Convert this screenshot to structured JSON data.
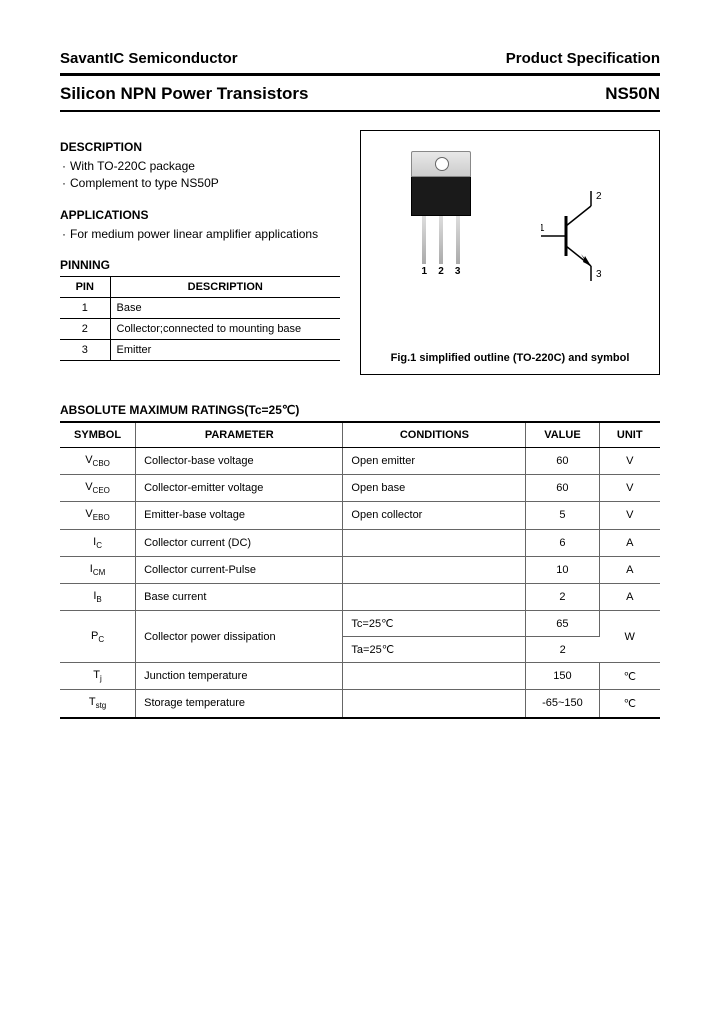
{
  "header": {
    "company": "SavantIC Semiconductor",
    "spec": "Product Specification",
    "title": "Silicon NPN Power Transistors",
    "part": "NS50N"
  },
  "description": {
    "head": "DESCRIPTION",
    "items": [
      "With TO-220C package",
      "Complement to type NS50P"
    ]
  },
  "applications": {
    "head": "APPLICATIONS",
    "items": [
      "For medium power linear amplifier applications"
    ]
  },
  "pinning": {
    "head": "PINNING",
    "col_pin": "PIN",
    "col_desc": "DESCRIPTION",
    "rows": [
      {
        "pin": "1",
        "desc": "Base"
      },
      {
        "pin": "2",
        "desc": "Collector;connected to mounting base"
      },
      {
        "pin": "3",
        "desc": "Emitter"
      }
    ]
  },
  "figure": {
    "caption": "Fig.1 simplified outline (TO-220C) and symbol",
    "lead_labels": [
      "1",
      "2",
      "3"
    ],
    "sym_labels": {
      "b": "1",
      "c": "2",
      "e": "3"
    }
  },
  "ratings": {
    "head": "ABSOLUTE MAXIMUM RATINGS(Tc=25℃)",
    "columns": [
      "SYMBOL",
      "PARAMETER",
      "CONDITIONS",
      "VALUE",
      "UNIT"
    ],
    "rows": [
      {
        "sym": "V",
        "sub": "CBO",
        "param": "Collector-base voltage",
        "cond": "Open emitter",
        "val": "60",
        "unit": "V",
        "rowspan": 1
      },
      {
        "sym": "V",
        "sub": "CEO",
        "param": "Collector-emitter voltage",
        "cond": "Open base",
        "val": "60",
        "unit": "V",
        "rowspan": 1
      },
      {
        "sym": "V",
        "sub": "EBO",
        "param": "Emitter-base voltage",
        "cond": "Open collector",
        "val": "5",
        "unit": "V",
        "rowspan": 1
      },
      {
        "sym": "I",
        "sub": "C",
        "param": "Collector current (DC)",
        "cond": "",
        "val": "6",
        "unit": "A",
        "rowspan": 1
      },
      {
        "sym": "I",
        "sub": "CM",
        "param": "Collector current-Pulse",
        "cond": "",
        "val": "10",
        "unit": "A",
        "rowspan": 1
      },
      {
        "sym": "I",
        "sub": "B",
        "param": "Base current",
        "cond": "",
        "val": "2",
        "unit": "A",
        "rowspan": 1
      }
    ],
    "pc": {
      "sym": "P",
      "sub": "C",
      "param": "Collector power dissipation",
      "cond1": "Tc=25℃",
      "val1": "65",
      "cond2": "Ta=25℃",
      "val2": "2",
      "unit": "W"
    },
    "tj": {
      "sym": "T",
      "sub": "j",
      "param": "Junction temperature",
      "cond": "",
      "val": "150",
      "unit": "℃"
    },
    "tstg": {
      "sym": "T",
      "sub": "stg",
      "param": "Storage temperature",
      "cond": "",
      "val": "-65~150",
      "unit": "℃"
    }
  },
  "colors": {
    "text": "#000000",
    "rule": "#000000",
    "cell_border": "#666666",
    "pkg_body": "#1a1a1a"
  }
}
